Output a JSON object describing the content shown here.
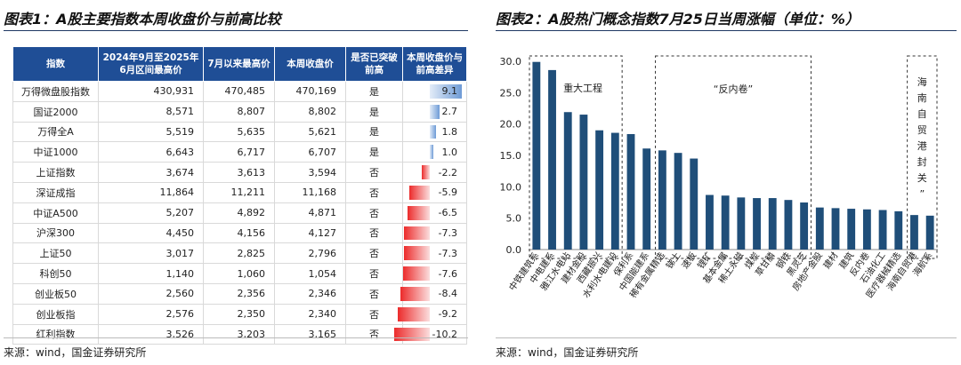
{
  "left": {
    "title": "图表1：A股主要指数本周收盘价与前高比较",
    "source": "来源：wind，国金证券研究所",
    "headers": [
      "指数",
      "2024年9月至2025年6月区间最高价",
      "7月以来最高价",
      "本周收盘价",
      "是否已突破前高",
      "本周收盘价与前高差异"
    ],
    "rows": [
      {
        "name": "万得微盘股指数",
        "prev_high": "430,931",
        "jul_high": "470,485",
        "close": "470,169",
        "broke": "是",
        "diff": 9.1,
        "diff_label": "9.1"
      },
      {
        "name": "国证2000",
        "prev_high": "8,571",
        "jul_high": "8,807",
        "close": "8,802",
        "broke": "是",
        "diff": 2.7,
        "diff_label": "2.7"
      },
      {
        "name": "万得全A",
        "prev_high": "5,519",
        "jul_high": "5,635",
        "close": "5,621",
        "broke": "是",
        "diff": 1.8,
        "diff_label": "1.8"
      },
      {
        "name": "中证1000",
        "prev_high": "6,643",
        "jul_high": "6,717",
        "close": "6,707",
        "broke": "是",
        "diff": 1.0,
        "diff_label": "1.0"
      },
      {
        "name": "上证指数",
        "prev_high": "3,674",
        "jul_high": "3,613",
        "close": "3,594",
        "broke": "否",
        "diff": -2.2,
        "diff_label": "-2.2"
      },
      {
        "name": "深证成指",
        "prev_high": "11,864",
        "jul_high": "11,211",
        "close": "11,168",
        "broke": "否",
        "diff": -5.9,
        "diff_label": "-5.9"
      },
      {
        "name": "中证A500",
        "prev_high": "5,207",
        "jul_high": "4,892",
        "close": "4,871",
        "broke": "否",
        "diff": -6.5,
        "diff_label": "-6.5"
      },
      {
        "name": "沪深300",
        "prev_high": "4,450",
        "jul_high": "4,156",
        "close": "4,127",
        "broke": "否",
        "diff": -7.3,
        "diff_label": "-7.3"
      },
      {
        "name": "上证50",
        "prev_high": "3,017",
        "jul_high": "2,825",
        "close": "2,796",
        "broke": "否",
        "diff": -7.3,
        "diff_label": "-7.3"
      },
      {
        "name": "科创50",
        "prev_high": "1,140",
        "jul_high": "1,060",
        "close": "1,054",
        "broke": "否",
        "diff": -7.6,
        "diff_label": "-7.6"
      },
      {
        "name": "创业板50",
        "prev_high": "2,560",
        "jul_high": "2,356",
        "close": "2,346",
        "broke": "否",
        "diff": -8.4,
        "diff_label": "-8.4"
      },
      {
        "name": "创业板指",
        "prev_high": "2,576",
        "jul_high": "2,350",
        "close": "2,340",
        "broke": "否",
        "diff": -9.2,
        "diff_label": "-9.2"
      },
      {
        "name": "红利指数",
        "prev_high": "3,526",
        "jul_high": "3,203",
        "close": "3,165",
        "broke": "否",
        "diff": -10.2,
        "diff_label": "-10.2"
      }
    ]
  },
  "right": {
    "title": "图表2：A股热门概念指数7月25日当周涨幅（单位：%）",
    "source": "来源：wind，国金证券研究所"
  },
  "chart_data": {
    "type": "bar",
    "categories": [
      "中铁建筑系",
      "中电建系",
      "雅江水电站",
      "建材金股",
      "西藏振兴",
      "水利水电建设",
      "保利系",
      "中国能建系",
      "稀有金属精选",
      "锑土",
      "速板",
      "锂矿",
      "基本金属",
      "稀土永磁",
      "煤炭",
      "草甘膦",
      "钢铁",
      "黑灵芝",
      "房地产金股",
      "建材",
      "建筑",
      "反内卷",
      "石油化工",
      "医疗器械精选",
      "海南自贸港",
      "海航系"
    ],
    "values": [
      29.9,
      28.6,
      21.9,
      21.5,
      19.0,
      18.6,
      18.4,
      16.1,
      15.8,
      15.4,
      14.5,
      8.7,
      8.6,
      8.3,
      8.2,
      8.2,
      7.9,
      7.5,
      6.7,
      6.6,
      6.5,
      6.4,
      6.3,
      6.1,
      5.5,
      5.4
    ],
    "ylim": [
      0,
      30
    ],
    "yticks": [
      "0.0",
      "5.0",
      "10.0",
      "15.0",
      "20.0",
      "25.0",
      "30.0"
    ],
    "bar_color": "#1f4e79",
    "annotations": [
      {
        "label": "重大工程",
        "from": 0,
        "to": 5
      },
      {
        "label": "“反内卷”",
        "from": 8,
        "to": 17
      },
      {
        "label": "海南自贸港封关”",
        "from": 24,
        "to": 25
      }
    ],
    "grid": false
  }
}
